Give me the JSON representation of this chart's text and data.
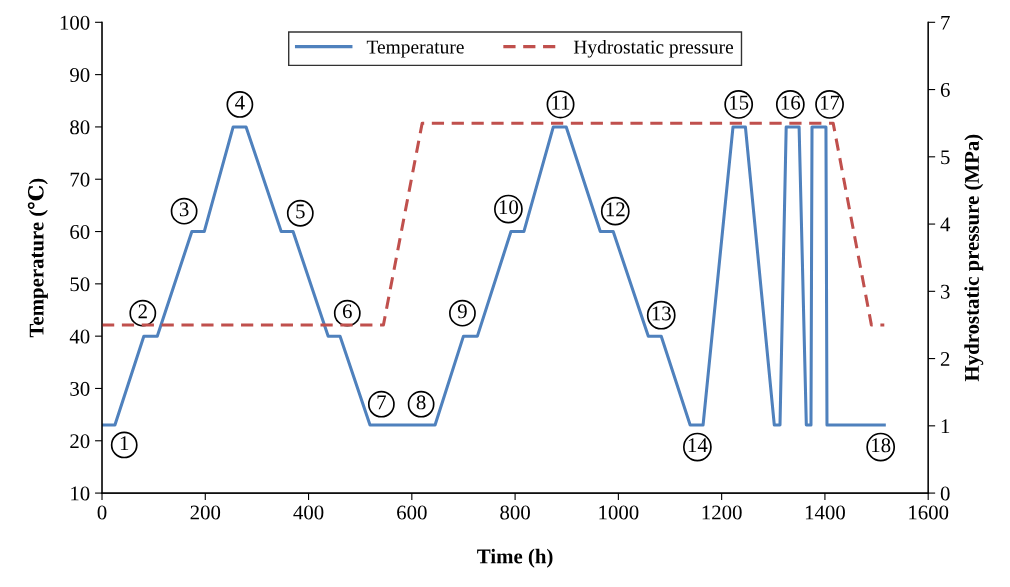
{
  "chart_data": {
    "type": "line",
    "xlabel": "Time (h)",
    "ylabel": "Temperature (℃)",
    "y2label": "Hydrostatic pressure (MPa)",
    "xlim": [
      0,
      1600
    ],
    "xticks": [
      0,
      200,
      400,
      600,
      800,
      1000,
      1200,
      1400,
      1600
    ],
    "ylim": [
      10,
      100
    ],
    "yticks": [
      10,
      20,
      30,
      40,
      50,
      60,
      70,
      80,
      90,
      100
    ],
    "y2lim": [
      0,
      7
    ],
    "y2ticks": [
      0,
      1,
      2,
      3,
      4,
      5,
      6,
      7
    ],
    "grid": false,
    "legend": "top",
    "marker": "none",
    "series": [
      {
        "name": "Temperature",
        "color": "#4f81bd",
        "line_style": "solid",
        "x": [
          0,
          25,
          81,
          107,
          174,
          198,
          254,
          279,
          347,
          370,
          438,
          461,
          519,
          645,
          700,
          727,
          792,
          817,
          874,
          899,
          965,
          990,
          1058,
          1083,
          1139,
          1164,
          1222,
          1246,
          1302,
          1313,
          1325,
          1350,
          1364,
          1373,
          1375,
          1402,
          1404,
          1515
        ],
        "values": [
          23,
          23,
          40,
          40,
          60,
          60,
          80,
          80,
          60,
          60,
          40,
          40,
          23,
          23,
          40,
          40,
          60,
          60,
          80,
          80,
          60,
          60,
          40,
          40,
          23,
          23,
          80,
          80,
          23,
          23,
          80,
          80,
          23,
          23,
          80,
          80,
          23,
          23
        ]
      },
      {
        "name": "Hydrostatic pressure",
        "color": "#c0504d",
        "line_style": "dashed",
        "axis": "y2",
        "x": [
          0,
          545,
          620,
          1416,
          1490,
          1515
        ],
        "values": [
          2.5,
          2.5,
          5.5,
          5.5,
          2.5,
          2.5
        ]
      }
    ],
    "annotations": [
      {
        "text": "1",
        "x": 43,
        "y": 19.2
      },
      {
        "text": "2",
        "x": 79,
        "y": 44.4
      },
      {
        "text": "3",
        "x": 159,
        "y": 63.9
      },
      {
        "text": "4",
        "x": 267,
        "y": 84.3
      },
      {
        "text": "5",
        "x": 384,
        "y": 63.5
      },
      {
        "text": "6",
        "x": 475,
        "y": 44.4
      },
      {
        "text": "7",
        "x": 541,
        "y": 27
      },
      {
        "text": "8",
        "x": 618,
        "y": 27
      },
      {
        "text": "9",
        "x": 698,
        "y": 44.4
      },
      {
        "text": "10",
        "x": 787,
        "y": 64.3
      },
      {
        "text": "11",
        "x": 888,
        "y": 84.3
      },
      {
        "text": "12",
        "x": 994,
        "y": 63.9
      },
      {
        "text": "13",
        "x": 1083,
        "y": 44
      },
      {
        "text": "14",
        "x": 1153,
        "y": 18.8
      },
      {
        "text": "15",
        "x": 1233,
        "y": 84.3
      },
      {
        "text": "16",
        "x": 1333,
        "y": 84.3
      },
      {
        "text": "17",
        "x": 1409,
        "y": 84.3
      },
      {
        "text": "18",
        "x": 1508,
        "y": 18.8
      }
    ]
  }
}
